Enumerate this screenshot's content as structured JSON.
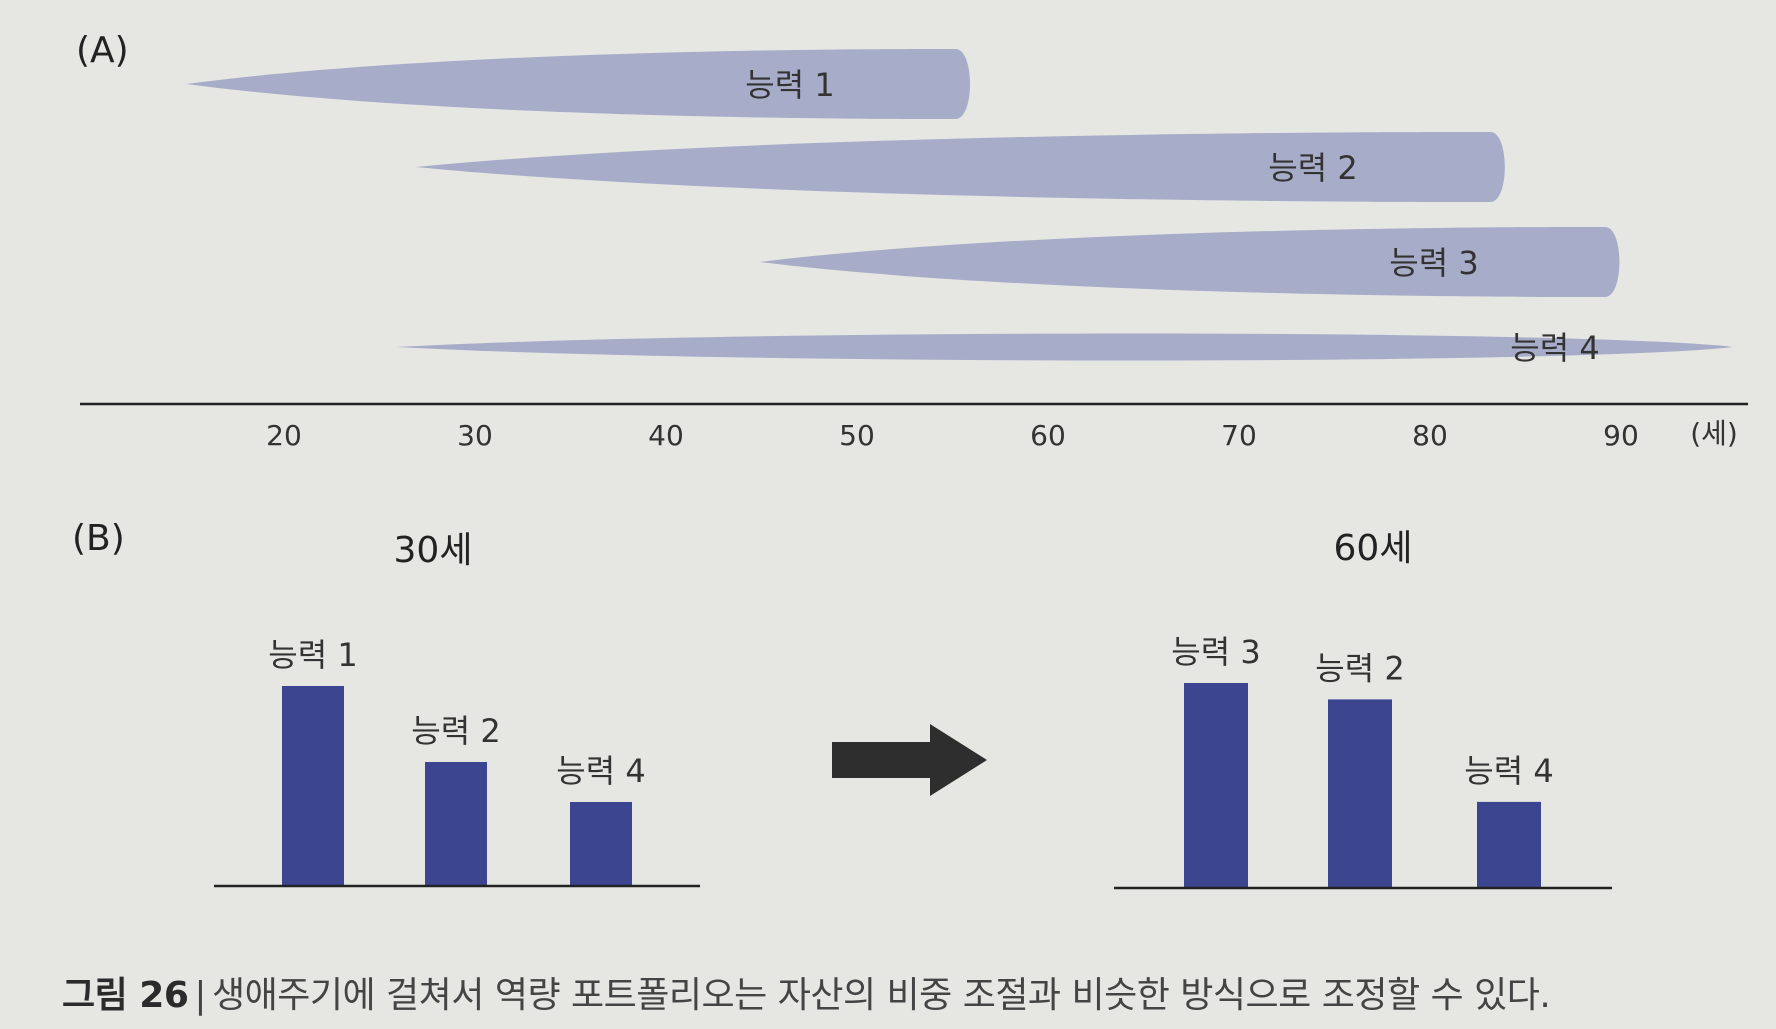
{
  "figure": {
    "panel_a_label": "(A)",
    "panel_b_label": "(B)",
    "caption_number": "그림 26",
    "caption_separator": "|",
    "caption_text": "생애주기에 걸쳐서 역량 포트폴리오는 자산의 비중 조절과 비슷한 방식으로 조정할 수 있다."
  },
  "colors": {
    "background": "#e6e6e3",
    "blob_fill": "#a7adc9",
    "bar_fill": "#3c4690",
    "axis": "#222222",
    "arrow": "#2e2e2e"
  },
  "chart_data": [
    {
      "type": "area",
      "panel": "A",
      "description_of_marks": "horizontal lens shapes spanning age ranges",
      "xlim": [
        10,
        97
      ],
      "x_ticks": [
        20,
        30,
        40,
        50,
        60,
        70,
        80,
        90
      ],
      "x_tick_labels": [
        "20",
        "30",
        "40",
        "50",
        "60",
        "70",
        "80",
        "90"
      ],
      "x_unit_label": "(세)",
      "series": [
        {
          "name": "능력 1",
          "start": 15,
          "end": 56,
          "thickness": 0.8,
          "style": "teardrop"
        },
        {
          "name": "능력 2",
          "start": 27,
          "end": 84,
          "thickness": 0.8,
          "style": "teardrop"
        },
        {
          "name": "능력 3",
          "start": 45,
          "end": 90,
          "thickness": 0.8,
          "style": "teardrop"
        },
        {
          "name": "능력 4",
          "start": 26,
          "end": 96,
          "thickness": 0.4,
          "style": "lens"
        }
      ]
    },
    {
      "type": "bar",
      "panel": "B",
      "title": "30세",
      "categories": [
        "능력 1",
        "능력 2",
        "능력 4"
      ],
      "values": [
        100,
        62,
        42
      ],
      "ylim": [
        0,
        100
      ]
    },
    {
      "type": "bar",
      "panel": "B",
      "title": "60세",
      "categories": [
        "능력 3",
        "능력 2",
        "능력 4"
      ],
      "values": [
        100,
        92,
        42
      ],
      "ylim": [
        0,
        100
      ]
    }
  ]
}
